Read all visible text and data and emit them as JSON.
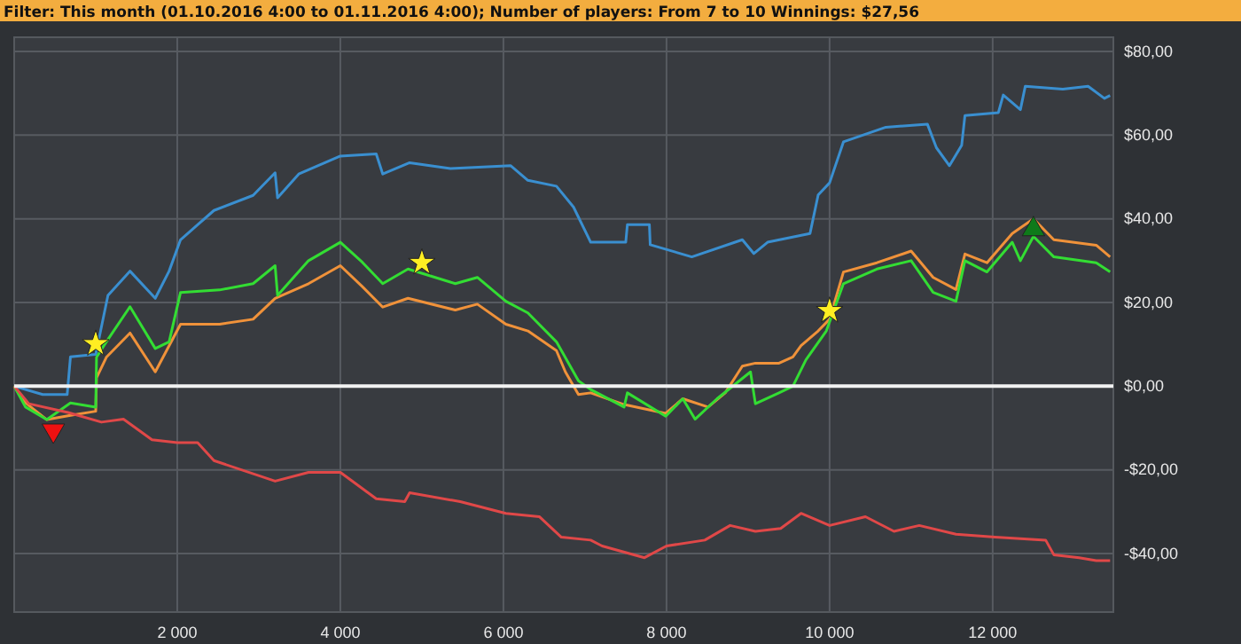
{
  "chart_data": {
    "type": "line",
    "title": "Filter: This month (01.10.2016 4:00 to 01.11.2016 4:00); Number of players: From 7 to 10 Winnings: $27,56",
    "xlim": [
      0,
      13480
    ],
    "ylim": [
      -54,
      83.4
    ],
    "xticks": [
      {
        "value": 2000,
        "label": "2 000"
      },
      {
        "value": 4000,
        "label": "4 000"
      },
      {
        "value": 6000,
        "label": "6 000"
      },
      {
        "value": 8000,
        "label": "8 000"
      },
      {
        "value": 10000,
        "label": "10 000"
      },
      {
        "value": 12000,
        "label": "12 000"
      }
    ],
    "yticks": [
      {
        "value": -40,
        "label": "-$40,00"
      },
      {
        "value": -20,
        "label": "-$20,00"
      },
      {
        "value": 0,
        "label": "$0,00"
      },
      {
        "value": 20,
        "label": "$20,00"
      },
      {
        "value": 40,
        "label": "$40,00"
      },
      {
        "value": 60,
        "label": "$60,00"
      },
      {
        "value": 80,
        "label": "$80,00"
      }
    ],
    "grid": true,
    "ref_lines": [
      {
        "axis": "y",
        "value": 0,
        "color": "#f2f2f2"
      }
    ],
    "series": [
      {
        "color": "#3a8fd0",
        "x": [
          0,
          350,
          650,
          690,
          1000,
          1150,
          1420,
          1730,
          1900,
          2040,
          2450,
          2930,
          3200,
          3230,
          3490,
          4000,
          4440,
          4520,
          4850,
          5350,
          6090,
          6300,
          6650,
          6860,
          7070,
          7500,
          7520,
          7790,
          7800,
          8310,
          8930,
          9070,
          9240,
          9760,
          9860,
          10000,
          10170,
          10690,
          11200,
          11310,
          11470,
          11620,
          11660,
          12070,
          12130,
          12340,
          12400,
          12860,
          13170,
          13370,
          13440
        ],
        "values": [
          0,
          -2,
          -2,
          7,
          7.6,
          21.7,
          27.5,
          21,
          27.5,
          35,
          42,
          45.6,
          51,
          45,
          50.7,
          55,
          55.5,
          50.7,
          53.4,
          52,
          52.7,
          49.2,
          47.8,
          42.8,
          34.4,
          34.4,
          38.6,
          38.6,
          33.8,
          30.9,
          35,
          31.7,
          34.4,
          36.5,
          45.7,
          48.6,
          58.4,
          61.9,
          62.6,
          57,
          52.7,
          57.6,
          64.7,
          65.4,
          69.6,
          66.1,
          71.7,
          71,
          71.7,
          68.8,
          69.5
        ]
      },
      {
        "color": "#f0923a",
        "x": [
          0,
          140,
          400,
          690,
          1000,
          1010,
          1130,
          1420,
          1730,
          2040,
          2520,
          2930,
          3200,
          3610,
          4000,
          4270,
          4520,
          4830,
          5410,
          5680,
          6030,
          6300,
          6650,
          6760,
          6920,
          7070,
          7480,
          7990,
          8200,
          8510,
          8720,
          8930,
          9090,
          9380,
          9550,
          9650,
          9860,
          10000,
          10170,
          10580,
          11000,
          11270,
          11550,
          11660,
          11930,
          12240,
          12500,
          12750,
          13270,
          13440
        ],
        "values": [
          0,
          -4,
          -8,
          -7,
          -6,
          2,
          6.9,
          12.7,
          3.4,
          14.8,
          14.8,
          16,
          21,
          24.5,
          28.8,
          23.8,
          18.9,
          21,
          18.2,
          19.6,
          14.8,
          13.2,
          8.5,
          3.4,
          -2,
          -1.6,
          -4.4,
          -6.5,
          -3,
          -5,
          -1.6,
          4.8,
          5.5,
          5.5,
          7,
          9.7,
          13.2,
          16,
          27.3,
          29.5,
          32.3,
          26,
          23.1,
          31.6,
          29.5,
          36.5,
          40,
          35,
          33.7,
          30.9
        ]
      },
      {
        "color": "#33dd33",
        "x": [
          0,
          140,
          400,
          690,
          1000,
          1010,
          1130,
          1420,
          1730,
          1900,
          2040,
          2520,
          2930,
          3200,
          3230,
          3610,
          4000,
          4270,
          4520,
          4830,
          5410,
          5680,
          6030,
          6300,
          6650,
          6920,
          7070,
          7480,
          7520,
          7990,
          8200,
          8350,
          8620,
          9030,
          9090,
          9380,
          9550,
          9710,
          9960,
          10170,
          10580,
          11000,
          11270,
          11550,
          11660,
          11930,
          12240,
          12340,
          12500,
          12750,
          13270,
          13440
        ],
        "values": [
          0,
          -5,
          -8,
          -4,
          -5,
          6.9,
          10.6,
          19,
          9,
          10.6,
          22.4,
          23,
          24.5,
          28.8,
          21.7,
          30,
          34.4,
          29.6,
          24.5,
          28,
          24.5,
          26,
          20.3,
          17.5,
          10.6,
          1.3,
          -0.8,
          -5,
          -1.6,
          -7.2,
          -3,
          -7.9,
          -3,
          3.4,
          -4.2,
          -1.6,
          0,
          6.3,
          13.2,
          24.5,
          28,
          30,
          22.4,
          20.3,
          30,
          27.3,
          34.4,
          30,
          35.8,
          30.9,
          29.5,
          27.3
        ]
      },
      {
        "color": "#e04848",
        "x": [
          0,
          180,
          660,
          1070,
          1340,
          1690,
          2000,
          2250,
          2450,
          3200,
          3610,
          4000,
          4440,
          4790,
          4850,
          5470,
          6030,
          6440,
          6710,
          7070,
          7210,
          7730,
          8000,
          8470,
          8780,
          9090,
          9400,
          9650,
          10000,
          10440,
          10790,
          11100,
          11550,
          12030,
          12650,
          12750,
          13060,
          13270,
          13440
        ],
        "values": [
          0,
          -4.2,
          -6.3,
          -8.6,
          -7.9,
          -12.8,
          -13.5,
          -13.5,
          -17.8,
          -22.7,
          -20.6,
          -20.6,
          -26.9,
          -27.6,
          -25.5,
          -27.6,
          -30.4,
          -31.2,
          -36.1,
          -36.8,
          -38.2,
          -41,
          -38.2,
          -36.8,
          -33.3,
          -34.7,
          -34,
          -30.4,
          -33.3,
          -31.2,
          -34.7,
          -33.3,
          -35.4,
          -36.1,
          -36.8,
          -40.3,
          -41,
          -41.7,
          -41.7
        ]
      },
      {
        "type": "scatter",
        "marker": "star",
        "color": "#ffee22",
        "x": [
          1000,
          5000,
          10000
        ],
        "values": [
          10.1,
          29.5,
          18
        ]
      },
      {
        "type": "scatter",
        "marker": "triangle-down",
        "color": "#ee1111",
        "x": [
          480
        ],
        "values": [
          -10.6
        ]
      },
      {
        "type": "scatter",
        "marker": "triangle",
        "color": "#0e7a1a",
        "x": [
          12500
        ],
        "values": [
          37.5
        ]
      }
    ]
  }
}
